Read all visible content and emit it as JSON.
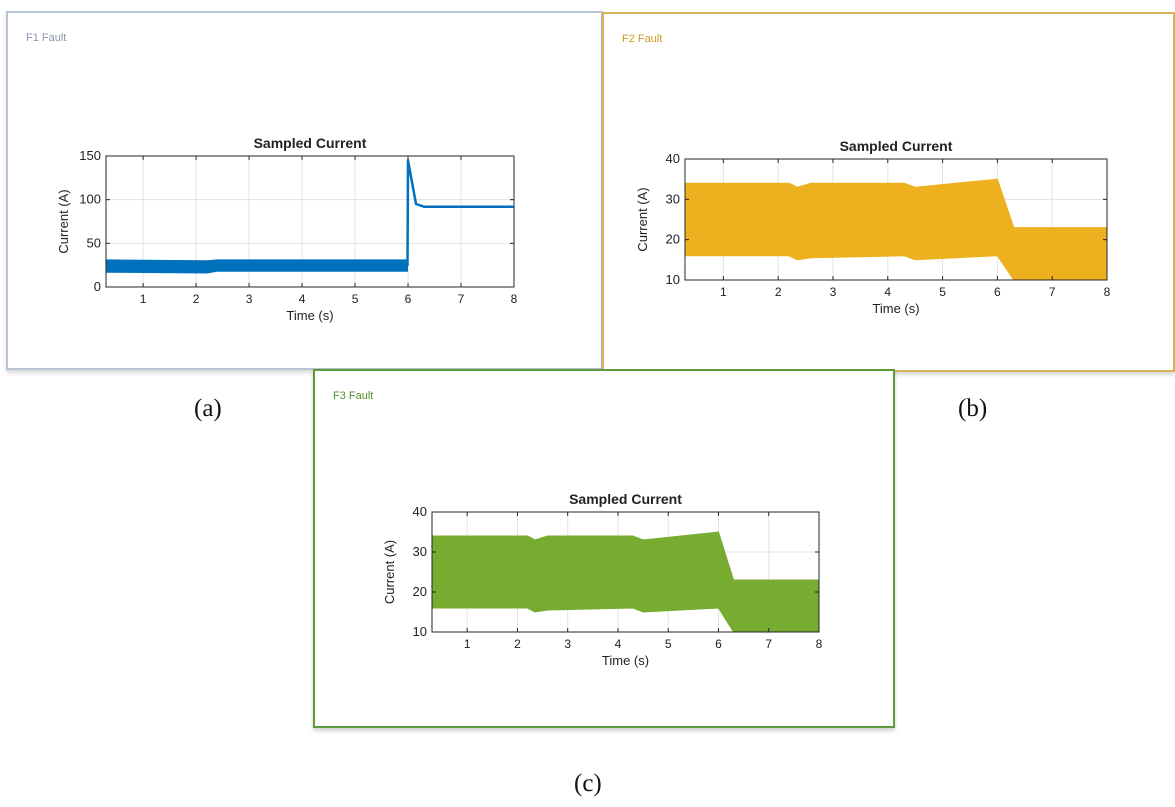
{
  "captions": {
    "a": "(a)",
    "b": "(b)",
    "c": "(c)"
  },
  "panels": [
    {
      "id": "a",
      "title": "F1 Fault",
      "title_color": "#8a94b0"
    },
    {
      "id": "b",
      "title": "F2 Fault",
      "title_color": "#d09a1f"
    },
    {
      "id": "c",
      "title": "F3 Fault",
      "title_color": "#4e8f2b"
    }
  ],
  "chart_data": [
    {
      "type": "area",
      "title": "Sampled Current",
      "xlabel": "Time (s)",
      "ylabel": "Current (A)",
      "xlim": [
        0.3,
        8
      ],
      "ylim": [
        0,
        150
      ],
      "xticks": [
        1,
        2,
        3,
        4,
        5,
        6,
        7,
        8
      ],
      "yticks": [
        0,
        50,
        100,
        150
      ],
      "grid": true,
      "color": "#0072bd",
      "series": [
        {
          "kind": "band",
          "x": [
            0.3,
            2.2,
            2.4,
            5.99
          ],
          "lower": [
            17,
            16,
            18,
            18
          ],
          "upper": [
            31,
            30,
            31,
            31
          ]
        },
        {
          "kind": "line",
          "x": [
            5.99,
            6.0,
            6.15,
            6.3,
            7.0,
            8.0
          ],
          "y": [
            24,
            145,
            95,
            92,
            92,
            92
          ]
        }
      ]
    },
    {
      "type": "area",
      "title": "Sampled Current",
      "xlabel": "Time (s)",
      "ylabel": "Current (A)",
      "xlim": [
        0.3,
        8
      ],
      "ylim": [
        10,
        40
      ],
      "xticks": [
        1,
        2,
        3,
        4,
        5,
        6,
        7,
        8
      ],
      "yticks": [
        10,
        20,
        30,
        40
      ],
      "grid": true,
      "color": "#edb120",
      "series": [
        {
          "kind": "band",
          "x": [
            0.3,
            2.2,
            2.35,
            2.6,
            4.3,
            4.5,
            6.0,
            6.15,
            6.3,
            8.0
          ],
          "lower": [
            16,
            16,
            15,
            15.5,
            16,
            15,
            16,
            13,
            10,
            10
          ],
          "upper": [
            34,
            34,
            33,
            34,
            34,
            33,
            35,
            29,
            23,
            23
          ]
        }
      ]
    },
    {
      "type": "area",
      "title": "Sampled Current",
      "xlabel": "Time (s)",
      "ylabel": "Current (A)",
      "xlim": [
        0.3,
        8
      ],
      "ylim": [
        10,
        40
      ],
      "xticks": [
        1,
        2,
        3,
        4,
        5,
        6,
        7,
        8
      ],
      "yticks": [
        10,
        20,
        30,
        40
      ],
      "grid": true,
      "color": "#77ac30",
      "series": [
        {
          "kind": "band",
          "x": [
            0.3,
            2.2,
            2.35,
            2.6,
            4.3,
            4.5,
            6.0,
            6.15,
            6.3,
            8.0
          ],
          "lower": [
            16,
            16,
            15,
            15.5,
            16,
            15,
            16,
            13,
            10,
            10
          ],
          "upper": [
            34,
            34,
            33,
            34,
            34,
            33,
            35,
            29,
            23,
            23
          ]
        }
      ]
    }
  ]
}
